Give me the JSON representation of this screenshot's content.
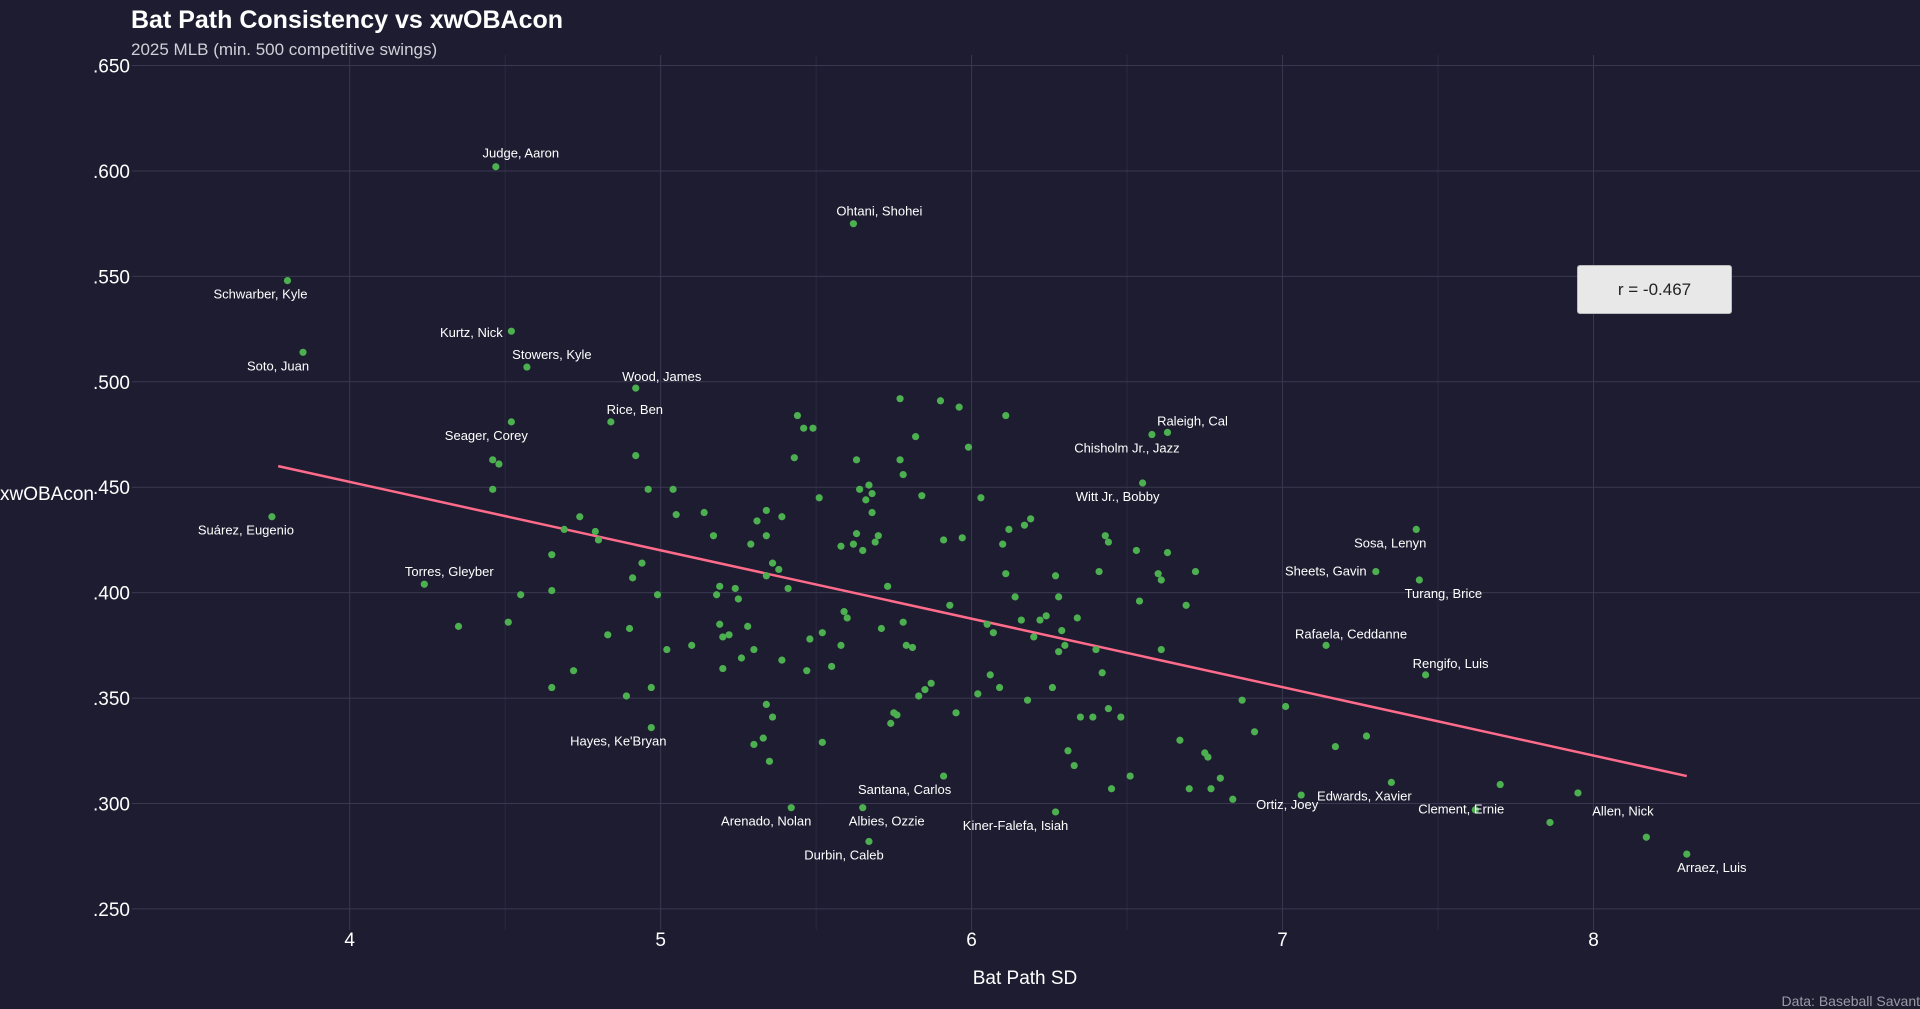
{
  "header": {
    "title": "Bat Path Consistency vs xwOBAcon",
    "subtitle": "2025 MLB (min. 500 competitive swings)"
  },
  "caption": "Data: Baseball Savant",
  "annotation": {
    "correlation": "r = -0.467"
  },
  "colors": {
    "background": "#1e1c30",
    "points": "#4caf50",
    "trend": "#ff6b8b",
    "grid": "#3a3850",
    "text": "#ffffff"
  },
  "chart_data": {
    "type": "scatter",
    "xlabel": "Bat Path SD",
    "ylabel": "xwOBAcon",
    "xlim": [
      3.3,
      9.05
    ],
    "ylim": [
      0.24,
      0.655
    ],
    "x_ticks": [
      4,
      5,
      6,
      7,
      8
    ],
    "x_tick_labels": [
      "4",
      "5",
      "6",
      "7",
      "8"
    ],
    "y_ticks": [
      0.25,
      0.3,
      0.35,
      0.4,
      0.45,
      0.5,
      0.55,
      0.6,
      0.65
    ],
    "y_tick_labels": [
      ".250",
      ".300",
      ".350",
      ".400",
      ".450",
      ".500",
      ".550",
      ".600",
      ".650"
    ],
    "grid": true,
    "trend_line": {
      "x": [
        3.77,
        8.3
      ],
      "y": [
        0.46,
        0.313
      ]
    },
    "labeled_points": [
      {
        "name": "Judge, Aaron",
        "x": 4.47,
        "y": 0.602
      },
      {
        "name": "Ohtani, Shohei",
        "x": 5.62,
        "y": 0.575
      },
      {
        "name": "Schwarber, Kyle",
        "x": 3.8,
        "y": 0.548
      },
      {
        "name": "Kurtz, Nick",
        "x": 4.52,
        "y": 0.524
      },
      {
        "name": "Soto, Juan",
        "x": 3.85,
        "y": 0.514
      },
      {
        "name": "Stowers, Kyle",
        "x": 4.57,
        "y": 0.507
      },
      {
        "name": "Wood, James",
        "x": 4.92,
        "y": 0.497
      },
      {
        "name": "Rice, Ben",
        "x": 4.84,
        "y": 0.481
      },
      {
        "name": "Seager, Corey",
        "x": 4.52,
        "y": 0.481
      },
      {
        "name": "Raleigh, Cal",
        "x": 6.63,
        "y": 0.476
      },
      {
        "name": "Chisholm Jr., Jazz",
        "x": 6.58,
        "y": 0.475
      },
      {
        "name": "Witt Jr., Bobby",
        "x": 6.55,
        "y": 0.452
      },
      {
        "name": "Suárez, Eugenio",
        "x": 3.75,
        "y": 0.436
      },
      {
        "name": "Sosa, Lenyn",
        "x": 7.43,
        "y": 0.43
      },
      {
        "name": "Sheets, Gavin",
        "x": 7.3,
        "y": 0.41
      },
      {
        "name": "Turang, Brice",
        "x": 7.44,
        "y": 0.406
      },
      {
        "name": "Torres, Gleyber",
        "x": 4.24,
        "y": 0.404
      },
      {
        "name": "Rafaela, Ceddanne",
        "x": 7.14,
        "y": 0.375
      },
      {
        "name": "Rengifo, Luis",
        "x": 7.46,
        "y": 0.361
      },
      {
        "name": "Hayes, Ke'Bryan",
        "x": 4.97,
        "y": 0.336
      },
      {
        "name": "Santana, Carlos",
        "x": 5.91,
        "y": 0.313
      },
      {
        "name": "Edwards, Xavier",
        "x": 7.35,
        "y": 0.31
      },
      {
        "name": "Clement, Ernie",
        "x": 7.7,
        "y": 0.309
      },
      {
        "name": "Ortiz, Joey",
        "x": 7.06,
        "y": 0.304
      },
      {
        "name": "Arenado, Nolan",
        "x": 5.42,
        "y": 0.298
      },
      {
        "name": "Albies, Ozzie",
        "x": 5.65,
        "y": 0.298
      },
      {
        "name": "Kiner-Falefa, Isiah",
        "x": 6.27,
        "y": 0.296
      },
      {
        "name": "Allen, Nick",
        "x": 7.86,
        "y": 0.291
      },
      {
        "name": "Durbin, Caleb",
        "x": 5.67,
        "y": 0.282
      },
      {
        "name": "Arraez, Luis",
        "x": 8.3,
        "y": 0.276
      }
    ],
    "other_points": [
      [
        4.46,
        0.463
      ],
      [
        4.48,
        0.461
      ],
      [
        4.46,
        0.449
      ],
      [
        4.35,
        0.384
      ],
      [
        4.51,
        0.386
      ],
      [
        4.55,
        0.399
      ],
      [
        4.65,
        0.418
      ],
      [
        4.65,
        0.401
      ],
      [
        4.65,
        0.355
      ],
      [
        4.69,
        0.43
      ],
      [
        4.72,
        0.363
      ],
      [
        4.74,
        0.436
      ],
      [
        4.79,
        0.429
      ],
      [
        4.8,
        0.425
      ],
      [
        4.83,
        0.38
      ],
      [
        4.89,
        0.351
      ],
      [
        4.9,
        0.383
      ],
      [
        4.91,
        0.407
      ],
      [
        4.92,
        0.465
      ],
      [
        4.94,
        0.414
      ],
      [
        4.96,
        0.449
      ],
      [
        4.97,
        0.355
      ],
      [
        4.99,
        0.399
      ],
      [
        5.02,
        0.373
      ],
      [
        5.04,
        0.449
      ],
      [
        5.05,
        0.437
      ],
      [
        5.1,
        0.375
      ],
      [
        5.14,
        0.438
      ],
      [
        5.17,
        0.427
      ],
      [
        5.18,
        0.399
      ],
      [
        5.19,
        0.403
      ],
      [
        5.19,
        0.385
      ],
      [
        5.2,
        0.364
      ],
      [
        5.2,
        0.379
      ],
      [
        5.22,
        0.38
      ],
      [
        5.24,
        0.402
      ],
      [
        5.25,
        0.397
      ],
      [
        5.26,
        0.369
      ],
      [
        5.28,
        0.384
      ],
      [
        5.29,
        0.423
      ],
      [
        5.3,
        0.328
      ],
      [
        5.3,
        0.373
      ],
      [
        5.31,
        0.434
      ],
      [
        5.33,
        0.331
      ],
      [
        5.34,
        0.439
      ],
      [
        5.34,
        0.427
      ],
      [
        5.34,
        0.408
      ],
      [
        5.34,
        0.347
      ],
      [
        5.35,
        0.32
      ],
      [
        5.36,
        0.341
      ],
      [
        5.36,
        0.414
      ],
      [
        5.38,
        0.411
      ],
      [
        5.39,
        0.436
      ],
      [
        5.39,
        0.368
      ],
      [
        5.41,
        0.402
      ],
      [
        5.43,
        0.464
      ],
      [
        5.44,
        0.484
      ],
      [
        5.46,
        0.478
      ],
      [
        5.47,
        0.363
      ],
      [
        5.48,
        0.378
      ],
      [
        5.49,
        0.478
      ],
      [
        5.51,
        0.445
      ],
      [
        5.52,
        0.329
      ],
      [
        5.52,
        0.381
      ],
      [
        5.55,
        0.365
      ],
      [
        5.58,
        0.422
      ],
      [
        5.58,
        0.375
      ],
      [
        5.59,
        0.391
      ],
      [
        5.6,
        0.388
      ],
      [
        5.62,
        0.423
      ],
      [
        5.63,
        0.463
      ],
      [
        5.63,
        0.428
      ],
      [
        5.64,
        0.449
      ],
      [
        5.65,
        0.42
      ],
      [
        5.66,
        0.444
      ],
      [
        5.67,
        0.451
      ],
      [
        5.68,
        0.438
      ],
      [
        5.68,
        0.447
      ],
      [
        5.69,
        0.424
      ],
      [
        5.7,
        0.427
      ],
      [
        5.71,
        0.383
      ],
      [
        5.73,
        0.403
      ],
      [
        5.74,
        0.338
      ],
      [
        5.75,
        0.343
      ],
      [
        5.76,
        0.342
      ],
      [
        5.77,
        0.492
      ],
      [
        5.77,
        0.463
      ],
      [
        5.78,
        0.456
      ],
      [
        5.78,
        0.386
      ],
      [
        5.79,
        0.375
      ],
      [
        5.81,
        0.374
      ],
      [
        5.82,
        0.474
      ],
      [
        5.83,
        0.351
      ],
      [
        5.84,
        0.446
      ],
      [
        5.85,
        0.354
      ],
      [
        5.87,
        0.357
      ],
      [
        5.9,
        0.491
      ],
      [
        5.91,
        0.425
      ],
      [
        5.93,
        0.394
      ],
      [
        5.95,
        0.343
      ],
      [
        5.96,
        0.488
      ],
      [
        5.97,
        0.426
      ],
      [
        5.99,
        0.469
      ],
      [
        6.02,
        0.352
      ],
      [
        6.03,
        0.445
      ],
      [
        6.05,
        0.385
      ],
      [
        6.06,
        0.361
      ],
      [
        6.07,
        0.381
      ],
      [
        6.09,
        0.355
      ],
      [
        6.1,
        0.423
      ],
      [
        6.11,
        0.484
      ],
      [
        6.11,
        0.409
      ],
      [
        6.12,
        0.43
      ],
      [
        6.14,
        0.398
      ],
      [
        6.16,
        0.387
      ],
      [
        6.17,
        0.432
      ],
      [
        6.18,
        0.349
      ],
      [
        6.19,
        0.435
      ],
      [
        6.2,
        0.379
      ],
      [
        6.22,
        0.387
      ],
      [
        6.24,
        0.389
      ],
      [
        6.26,
        0.355
      ],
      [
        6.27,
        0.408
      ],
      [
        6.28,
        0.398
      ],
      [
        6.28,
        0.372
      ],
      [
        6.29,
        0.382
      ],
      [
        6.3,
        0.375
      ],
      [
        6.31,
        0.325
      ],
      [
        6.33,
        0.318
      ],
      [
        6.34,
        0.388
      ],
      [
        6.35,
        0.341
      ],
      [
        6.39,
        0.341
      ],
      [
        6.4,
        0.373
      ],
      [
        6.41,
        0.41
      ],
      [
        6.42,
        0.362
      ],
      [
        6.43,
        0.427
      ],
      [
        6.44,
        0.345
      ],
      [
        6.44,
        0.424
      ],
      [
        6.45,
        0.307
      ],
      [
        6.48,
        0.341
      ],
      [
        6.51,
        0.313
      ],
      [
        6.53,
        0.42
      ],
      [
        6.54,
        0.396
      ],
      [
        6.6,
        0.409
      ],
      [
        6.61,
        0.406
      ],
      [
        6.61,
        0.373
      ],
      [
        6.63,
        0.419
      ],
      [
        6.67,
        0.33
      ],
      [
        6.69,
        0.394
      ],
      [
        6.7,
        0.307
      ],
      [
        6.72,
        0.41
      ],
      [
        6.75,
        0.324
      ],
      [
        6.76,
        0.322
      ],
      [
        6.77,
        0.307
      ],
      [
        6.8,
        0.312
      ],
      [
        6.84,
        0.302
      ],
      [
        6.87,
        0.349
      ],
      [
        6.91,
        0.334
      ],
      [
        7.01,
        0.346
      ],
      [
        7.17,
        0.327
      ],
      [
        7.27,
        0.332
      ],
      [
        7.62,
        0.297
      ],
      [
        7.95,
        0.305
      ],
      [
        8.17,
        0.284
      ]
    ]
  }
}
